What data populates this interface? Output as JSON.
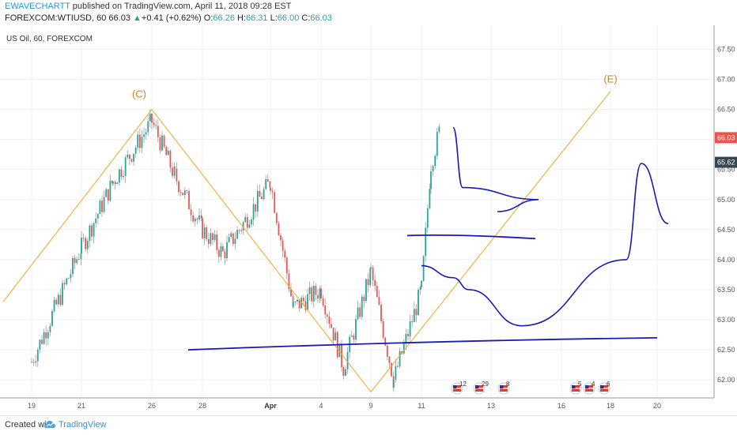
{
  "header": {
    "author": "EWAVECHARTT",
    "published": " published on TradingView.com, April 11, 2018 09:28 EST",
    "symbol": "FOREXCOM:WTIUSD, 60",
    "last": "66.03",
    "change": "+0.41 (+0.62%)",
    "open_label": "O:",
    "open": "66.26",
    "high_label": "H:",
    "high": "66.31",
    "low_label": "L:",
    "low": "66.00",
    "close_label": "C:",
    "close": "66.03"
  },
  "legend": {
    "instrument": "US Oil, 60, FOREXCOM"
  },
  "footer": {
    "created_with": "Created with",
    "brand": "TradingView"
  },
  "colors": {
    "bull": "#26a69a",
    "bear": "#ef5350",
    "wick": "#9e9e9e",
    "wave": "#f5a623",
    "projection": "#1a1ab8",
    "price_tag": "#ef5350",
    "price_tag2": "#37474f",
    "grid": "#eef0f3"
  },
  "chart_data": {
    "type": "candlestick",
    "title": "US Oil, 60, FOREXCOM",
    "ylim": [
      61.7,
      67.9
    ],
    "price_ticks": [
      "62.00",
      "62.50",
      "63.00",
      "63.50",
      "64.00",
      "64.50",
      "65.00",
      "65.50",
      "66.00",
      "66.50",
      "67.00",
      "67.50"
    ],
    "date_ticks": [
      "19",
      "21",
      "26",
      "28",
      "Apr",
      "4",
      "9",
      "11",
      "13",
      "16",
      "18",
      "20"
    ],
    "last_price": "66.03",
    "marker_price": "65.62",
    "wave_labels": [
      "(C)",
      "(E)"
    ],
    "price_path": [
      [
        "19",
        62.3
      ],
      [
        "21",
        64.2
      ],
      [
        "21",
        65.3
      ],
      [
        "26",
        66.3
      ],
      [
        "26",
        65.4
      ],
      [
        "28",
        64.5
      ],
      [
        "28",
        64.1
      ],
      [
        "28",
        64.6
      ],
      [
        "Apr",
        65.3
      ],
      [
        "Apr",
        63.2
      ],
      [
        "4",
        63.5
      ],
      [
        "4",
        62.2
      ],
      [
        "9",
        63.8
      ],
      [
        "9",
        62.0
      ],
      [
        "11",
        63.5
      ],
      [
        "11",
        65.6
      ],
      [
        "11",
        66.2
      ]
    ],
    "wave_lines": [
      {
        "from": [
          "19",
          63.3
        ],
        "to": [
          "26",
          66.5
        ]
      },
      {
        "from": [
          "26",
          66.5
        ],
        "to": [
          "9",
          61.8
        ]
      },
      {
        "from": [
          "9",
          61.8
        ],
        "to": [
          "18",
          66.8
        ]
      }
    ],
    "support_lines": [
      {
        "from": [
          "11",
          64.4
        ],
        "to": [
          "13",
          64.35
        ]
      },
      {
        "from": [
          "28",
          62.5
        ],
        "to": [
          "20",
          62.7
        ]
      }
    ],
    "projection_paths": [
      [
        [
          "11",
          66.2
        ],
        [
          "11",
          65.2
        ],
        [
          "13",
          65.0
        ],
        [
          "13",
          64.8
        ]
      ],
      [
        [
          "11",
          63.9
        ],
        [
          "11",
          63.7
        ],
        [
          "13",
          63.5
        ],
        [
          "16",
          62.9
        ],
        [
          "18",
          64.0
        ],
        [
          "20",
          65.6
        ],
        [
          "20",
          64.6
        ]
      ]
    ],
    "event_markers": [
      {
        "date": "11",
        "count": "12"
      },
      {
        "date": "11",
        "count": "29"
      },
      {
        "date": "13",
        "count": "8"
      },
      {
        "date": "16",
        "count": "5"
      },
      {
        "date": "18",
        "count": "4"
      },
      {
        "date": "18",
        "count": "6"
      }
    ]
  }
}
